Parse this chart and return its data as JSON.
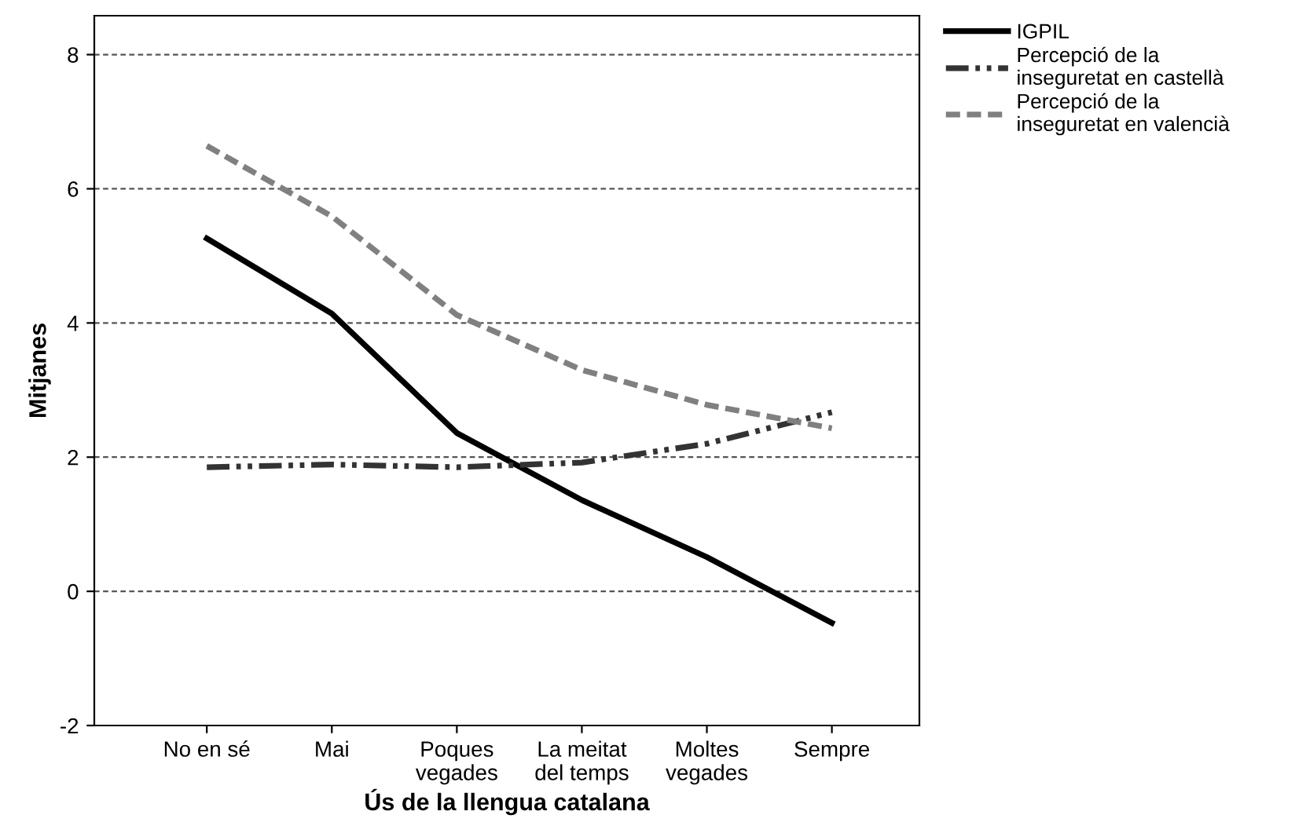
{
  "chart_data": {
    "type": "line",
    "xlabel": "Ús de la llengua catalana",
    "ylabel": "Mitjanes",
    "categories": [
      "No en sé",
      "Mai",
      "Poques\nvegades",
      "La meitat\ndel temps",
      "Moltes\nvegades",
      "Sempre"
    ],
    "series": [
      {
        "name": "IGPIL",
        "color": "#000000",
        "line_style": "solid",
        "values": [
          5.26,
          4.14,
          2.36,
          1.36,
          0.51,
          -0.47
        ]
      },
      {
        "name": "Percepció de la\ninseguretat en castellà",
        "color": "#333333",
        "line_style": "dashdot",
        "values": [
          1.85,
          1.89,
          1.85,
          1.92,
          2.2,
          2.67
        ]
      },
      {
        "name": "Percepció de la\ninseguretat en valencià",
        "color": "#808080",
        "line_style": "dashed",
        "values": [
          6.64,
          5.59,
          4.12,
          3.3,
          2.78,
          2.43
        ]
      }
    ],
    "ylim": [
      -2,
      8.58
    ],
    "yticks": [
      -2,
      0,
      2,
      4,
      6,
      8
    ],
    "grid": "y",
    "legend": "top right",
    "marker": "none"
  }
}
